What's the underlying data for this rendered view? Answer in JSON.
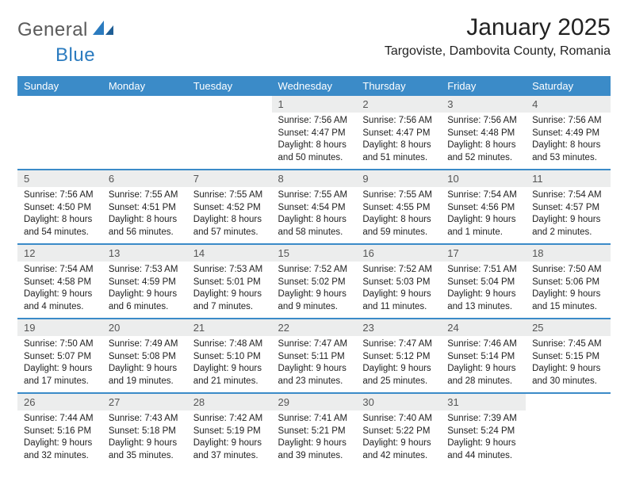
{
  "logo": {
    "text_general": "General",
    "text_blue": "Blue"
  },
  "title": "January 2025",
  "location": "Targoviste, Dambovita County, Romania",
  "colors": {
    "header_bg": "#3b8bc8",
    "header_text": "#ffffff",
    "daynum_bg": "#eceded",
    "row_border": "#3b8bc8",
    "logo_gray": "#5a5a5a",
    "logo_blue": "#2b7bbf"
  },
  "weekdays": [
    "Sunday",
    "Monday",
    "Tuesday",
    "Wednesday",
    "Thursday",
    "Friday",
    "Saturday"
  ],
  "weeks": [
    [
      {
        "empty": true
      },
      {
        "empty": true
      },
      {
        "empty": true
      },
      {
        "day": "1",
        "sunrise": "Sunrise: 7:56 AM",
        "sunset": "Sunset: 4:47 PM",
        "dl1": "Daylight: 8 hours",
        "dl2": "and 50 minutes."
      },
      {
        "day": "2",
        "sunrise": "Sunrise: 7:56 AM",
        "sunset": "Sunset: 4:47 PM",
        "dl1": "Daylight: 8 hours",
        "dl2": "and 51 minutes."
      },
      {
        "day": "3",
        "sunrise": "Sunrise: 7:56 AM",
        "sunset": "Sunset: 4:48 PM",
        "dl1": "Daylight: 8 hours",
        "dl2": "and 52 minutes."
      },
      {
        "day": "4",
        "sunrise": "Sunrise: 7:56 AM",
        "sunset": "Sunset: 4:49 PM",
        "dl1": "Daylight: 8 hours",
        "dl2": "and 53 minutes."
      }
    ],
    [
      {
        "day": "5",
        "sunrise": "Sunrise: 7:56 AM",
        "sunset": "Sunset: 4:50 PM",
        "dl1": "Daylight: 8 hours",
        "dl2": "and 54 minutes."
      },
      {
        "day": "6",
        "sunrise": "Sunrise: 7:55 AM",
        "sunset": "Sunset: 4:51 PM",
        "dl1": "Daylight: 8 hours",
        "dl2": "and 56 minutes."
      },
      {
        "day": "7",
        "sunrise": "Sunrise: 7:55 AM",
        "sunset": "Sunset: 4:52 PM",
        "dl1": "Daylight: 8 hours",
        "dl2": "and 57 minutes."
      },
      {
        "day": "8",
        "sunrise": "Sunrise: 7:55 AM",
        "sunset": "Sunset: 4:54 PM",
        "dl1": "Daylight: 8 hours",
        "dl2": "and 58 minutes."
      },
      {
        "day": "9",
        "sunrise": "Sunrise: 7:55 AM",
        "sunset": "Sunset: 4:55 PM",
        "dl1": "Daylight: 8 hours",
        "dl2": "and 59 minutes."
      },
      {
        "day": "10",
        "sunrise": "Sunrise: 7:54 AM",
        "sunset": "Sunset: 4:56 PM",
        "dl1": "Daylight: 9 hours",
        "dl2": "and 1 minute."
      },
      {
        "day": "11",
        "sunrise": "Sunrise: 7:54 AM",
        "sunset": "Sunset: 4:57 PM",
        "dl1": "Daylight: 9 hours",
        "dl2": "and 2 minutes."
      }
    ],
    [
      {
        "day": "12",
        "sunrise": "Sunrise: 7:54 AM",
        "sunset": "Sunset: 4:58 PM",
        "dl1": "Daylight: 9 hours",
        "dl2": "and 4 minutes."
      },
      {
        "day": "13",
        "sunrise": "Sunrise: 7:53 AM",
        "sunset": "Sunset: 4:59 PM",
        "dl1": "Daylight: 9 hours",
        "dl2": "and 6 minutes."
      },
      {
        "day": "14",
        "sunrise": "Sunrise: 7:53 AM",
        "sunset": "Sunset: 5:01 PM",
        "dl1": "Daylight: 9 hours",
        "dl2": "and 7 minutes."
      },
      {
        "day": "15",
        "sunrise": "Sunrise: 7:52 AM",
        "sunset": "Sunset: 5:02 PM",
        "dl1": "Daylight: 9 hours",
        "dl2": "and 9 minutes."
      },
      {
        "day": "16",
        "sunrise": "Sunrise: 7:52 AM",
        "sunset": "Sunset: 5:03 PM",
        "dl1": "Daylight: 9 hours",
        "dl2": "and 11 minutes."
      },
      {
        "day": "17",
        "sunrise": "Sunrise: 7:51 AM",
        "sunset": "Sunset: 5:04 PM",
        "dl1": "Daylight: 9 hours",
        "dl2": "and 13 minutes."
      },
      {
        "day": "18",
        "sunrise": "Sunrise: 7:50 AM",
        "sunset": "Sunset: 5:06 PM",
        "dl1": "Daylight: 9 hours",
        "dl2": "and 15 minutes."
      }
    ],
    [
      {
        "day": "19",
        "sunrise": "Sunrise: 7:50 AM",
        "sunset": "Sunset: 5:07 PM",
        "dl1": "Daylight: 9 hours",
        "dl2": "and 17 minutes."
      },
      {
        "day": "20",
        "sunrise": "Sunrise: 7:49 AM",
        "sunset": "Sunset: 5:08 PM",
        "dl1": "Daylight: 9 hours",
        "dl2": "and 19 minutes."
      },
      {
        "day": "21",
        "sunrise": "Sunrise: 7:48 AM",
        "sunset": "Sunset: 5:10 PM",
        "dl1": "Daylight: 9 hours",
        "dl2": "and 21 minutes."
      },
      {
        "day": "22",
        "sunrise": "Sunrise: 7:47 AM",
        "sunset": "Sunset: 5:11 PM",
        "dl1": "Daylight: 9 hours",
        "dl2": "and 23 minutes."
      },
      {
        "day": "23",
        "sunrise": "Sunrise: 7:47 AM",
        "sunset": "Sunset: 5:12 PM",
        "dl1": "Daylight: 9 hours",
        "dl2": "and 25 minutes."
      },
      {
        "day": "24",
        "sunrise": "Sunrise: 7:46 AM",
        "sunset": "Sunset: 5:14 PM",
        "dl1": "Daylight: 9 hours",
        "dl2": "and 28 minutes."
      },
      {
        "day": "25",
        "sunrise": "Sunrise: 7:45 AM",
        "sunset": "Sunset: 5:15 PM",
        "dl1": "Daylight: 9 hours",
        "dl2": "and 30 minutes."
      }
    ],
    [
      {
        "day": "26",
        "sunrise": "Sunrise: 7:44 AM",
        "sunset": "Sunset: 5:16 PM",
        "dl1": "Daylight: 9 hours",
        "dl2": "and 32 minutes."
      },
      {
        "day": "27",
        "sunrise": "Sunrise: 7:43 AM",
        "sunset": "Sunset: 5:18 PM",
        "dl1": "Daylight: 9 hours",
        "dl2": "and 35 minutes."
      },
      {
        "day": "28",
        "sunrise": "Sunrise: 7:42 AM",
        "sunset": "Sunset: 5:19 PM",
        "dl1": "Daylight: 9 hours",
        "dl2": "and 37 minutes."
      },
      {
        "day": "29",
        "sunrise": "Sunrise: 7:41 AM",
        "sunset": "Sunset: 5:21 PM",
        "dl1": "Daylight: 9 hours",
        "dl2": "and 39 minutes."
      },
      {
        "day": "30",
        "sunrise": "Sunrise: 7:40 AM",
        "sunset": "Sunset: 5:22 PM",
        "dl1": "Daylight: 9 hours",
        "dl2": "and 42 minutes."
      },
      {
        "day": "31",
        "sunrise": "Sunrise: 7:39 AM",
        "sunset": "Sunset: 5:24 PM",
        "dl1": "Daylight: 9 hours",
        "dl2": "and 44 minutes."
      },
      {
        "empty": true
      }
    ]
  ]
}
